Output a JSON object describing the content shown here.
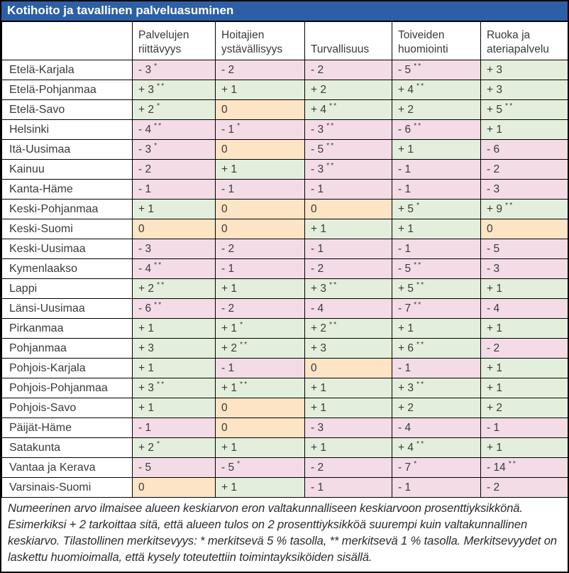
{
  "title": "Kotihoito ja tavallinen palveluasuminen",
  "columns": [
    "Palvelujen riittävyys",
    "Hoitajien ystävällisyys",
    "Turvallisuus",
    "Toiveiden huomiointi",
    "Ruoka ja ateriapalvelu"
  ],
  "colors": {
    "title_bg": "#2d5fa6",
    "title_text": "#ffffff",
    "pos": "#e3efdc",
    "neg": "#f3dce6",
    "zero": "#fce4c5",
    "border": "#000000"
  },
  "rows": [
    {
      "region": "Etelä-Karjala",
      "cells": [
        {
          "value": "- 3",
          "stars": "*",
          "tone": "neg"
        },
        {
          "value": "- 2",
          "stars": "",
          "tone": "neg"
        },
        {
          "value": "- 2",
          "stars": "",
          "tone": "neg"
        },
        {
          "value": "- 5",
          "stars": "**",
          "tone": "neg"
        },
        {
          "value": "+ 3",
          "stars": "",
          "tone": "pos"
        }
      ]
    },
    {
      "region": "Etelä-Pohjanmaa",
      "cells": [
        {
          "value": "+ 3",
          "stars": "**",
          "tone": "pos"
        },
        {
          "value": "+ 1",
          "stars": "",
          "tone": "pos"
        },
        {
          "value": "+ 2",
          "stars": "",
          "tone": "pos"
        },
        {
          "value": "+ 4",
          "stars": "**",
          "tone": "pos"
        },
        {
          "value": "+ 3",
          "stars": "",
          "tone": "pos"
        }
      ]
    },
    {
      "region": "Etelä-Savo",
      "cells": [
        {
          "value": "+ 2",
          "stars": "*",
          "tone": "pos"
        },
        {
          "value": "0",
          "stars": "",
          "tone": "zero"
        },
        {
          "value": "+ 4",
          "stars": "**",
          "tone": "pos"
        },
        {
          "value": "+ 2",
          "stars": "",
          "tone": "pos"
        },
        {
          "value": "+ 5",
          "stars": "**",
          "tone": "pos"
        }
      ]
    },
    {
      "region": "Helsinki",
      "cells": [
        {
          "value": "- 4",
          "stars": "**",
          "tone": "neg"
        },
        {
          "value": "- 1",
          "stars": "*",
          "tone": "neg"
        },
        {
          "value": "- 3",
          "stars": "**",
          "tone": "neg"
        },
        {
          "value": "- 6",
          "stars": "**",
          "tone": "neg"
        },
        {
          "value": "+ 1",
          "stars": "",
          "tone": "pos"
        }
      ]
    },
    {
      "region": "Itä-Uusimaa",
      "cells": [
        {
          "value": "- 3",
          "stars": "*",
          "tone": "neg"
        },
        {
          "value": "0",
          "stars": "",
          "tone": "zero"
        },
        {
          "value": "- 5",
          "stars": "**",
          "tone": "neg"
        },
        {
          "value": "+ 1",
          "stars": "",
          "tone": "pos"
        },
        {
          "value": "- 6",
          "stars": "",
          "tone": "neg"
        }
      ]
    },
    {
      "region": "Kainuu",
      "cells": [
        {
          "value": "- 2",
          "stars": "",
          "tone": "neg"
        },
        {
          "value": "+ 1",
          "stars": "",
          "tone": "pos"
        },
        {
          "value": "- 3",
          "stars": "**",
          "tone": "neg"
        },
        {
          "value": "- 1",
          "stars": "",
          "tone": "neg"
        },
        {
          "value": "- 2",
          "stars": "",
          "tone": "neg"
        }
      ]
    },
    {
      "region": "Kanta-Häme",
      "cells": [
        {
          "value": "- 1",
          "stars": "",
          "tone": "neg"
        },
        {
          "value": "- 1",
          "stars": "",
          "tone": "neg"
        },
        {
          "value": "- 1",
          "stars": "",
          "tone": "neg"
        },
        {
          "value": "- 1",
          "stars": "",
          "tone": "neg"
        },
        {
          "value": "- 3",
          "stars": "",
          "tone": "neg"
        }
      ]
    },
    {
      "region": "Keski-Pohjanmaa",
      "cells": [
        {
          "value": "+ 1",
          "stars": "",
          "tone": "pos"
        },
        {
          "value": "0",
          "stars": "",
          "tone": "zero"
        },
        {
          "value": "0",
          "stars": "",
          "tone": "zero"
        },
        {
          "value": "+ 5",
          "stars": "*",
          "tone": "pos"
        },
        {
          "value": "+ 9",
          "stars": "**",
          "tone": "pos"
        }
      ]
    },
    {
      "region": "Keski-Suomi",
      "cells": [
        {
          "value": "0",
          "stars": "",
          "tone": "zero"
        },
        {
          "value": "0",
          "stars": "",
          "tone": "zero"
        },
        {
          "value": "+ 1",
          "stars": "",
          "tone": "pos"
        },
        {
          "value": "+ 1",
          "stars": "",
          "tone": "pos"
        },
        {
          "value": "0",
          "stars": "",
          "tone": "zero"
        }
      ]
    },
    {
      "region": "Keski-Uusimaa",
      "cells": [
        {
          "value": "- 3",
          "stars": "",
          "tone": "neg"
        },
        {
          "value": "- 2",
          "stars": "",
          "tone": "neg"
        },
        {
          "value": "- 1",
          "stars": "",
          "tone": "neg"
        },
        {
          "value": "- 1",
          "stars": "",
          "tone": "neg"
        },
        {
          "value": "- 5",
          "stars": "",
          "tone": "neg"
        }
      ]
    },
    {
      "region": "Kymenlaakso",
      "cells": [
        {
          "value": "- 4",
          "stars": "**",
          "tone": "neg"
        },
        {
          "value": "- 1",
          "stars": "",
          "tone": "neg"
        },
        {
          "value": "- 2",
          "stars": "",
          "tone": "neg"
        },
        {
          "value": "- 5",
          "stars": "**",
          "tone": "neg"
        },
        {
          "value": "- 3",
          "stars": "",
          "tone": "neg"
        }
      ]
    },
    {
      "region": "Lappi",
      "cells": [
        {
          "value": "+ 2",
          "stars": "**",
          "tone": "pos"
        },
        {
          "value": "+ 1",
          "stars": "",
          "tone": "pos"
        },
        {
          "value": "+ 3",
          "stars": "**",
          "tone": "pos"
        },
        {
          "value": "+ 5",
          "stars": "**",
          "tone": "pos"
        },
        {
          "value": "+ 1",
          "stars": "",
          "tone": "pos"
        }
      ]
    },
    {
      "region": "Länsi-Uusimaa",
      "cells": [
        {
          "value": "- 6",
          "stars": "**",
          "tone": "neg"
        },
        {
          "value": "- 2",
          "stars": "",
          "tone": "neg"
        },
        {
          "value": "- 4",
          "stars": "",
          "tone": "neg"
        },
        {
          "value": "- 7",
          "stars": "**",
          "tone": "neg"
        },
        {
          "value": "- 4",
          "stars": "",
          "tone": "neg"
        }
      ]
    },
    {
      "region": "Pirkanmaa",
      "cells": [
        {
          "value": "+ 1",
          "stars": "",
          "tone": "pos"
        },
        {
          "value": "+ 1",
          "stars": "*",
          "tone": "pos"
        },
        {
          "value": "+ 2",
          "stars": "**",
          "tone": "pos"
        },
        {
          "value": "+ 1",
          "stars": "",
          "tone": "pos"
        },
        {
          "value": "+ 1",
          "stars": "",
          "tone": "pos"
        }
      ]
    },
    {
      "region": "Pohjanmaa",
      "cells": [
        {
          "value": "+ 3",
          "stars": "",
          "tone": "pos"
        },
        {
          "value": "+ 2",
          "stars": "**",
          "tone": "pos"
        },
        {
          "value": "+ 3",
          "stars": "",
          "tone": "pos"
        },
        {
          "value": "+ 6",
          "stars": "**",
          "tone": "pos"
        },
        {
          "value": "- 2",
          "stars": "",
          "tone": "neg"
        }
      ]
    },
    {
      "region": "Pohjois-Karjala",
      "cells": [
        {
          "value": "+ 1",
          "stars": "",
          "tone": "pos"
        },
        {
          "value": "- 1",
          "stars": "",
          "tone": "neg"
        },
        {
          "value": "0",
          "stars": "",
          "tone": "zero"
        },
        {
          "value": "- 1",
          "stars": "",
          "tone": "neg"
        },
        {
          "value": "+ 1",
          "stars": "",
          "tone": "pos"
        }
      ]
    },
    {
      "region": "Pohjois-Pohjanmaa",
      "cells": [
        {
          "value": "+ 3",
          "stars": "**",
          "tone": "pos"
        },
        {
          "value": "+ 1",
          "stars": "**",
          "tone": "pos"
        },
        {
          "value": "+ 1",
          "stars": "",
          "tone": "pos"
        },
        {
          "value": "+ 3",
          "stars": "**",
          "tone": "pos"
        },
        {
          "value": "+ 1",
          "stars": "",
          "tone": "pos"
        }
      ]
    },
    {
      "region": "Pohjois-Savo",
      "cells": [
        {
          "value": "+ 1",
          "stars": "",
          "tone": "pos"
        },
        {
          "value": "0",
          "stars": "",
          "tone": "zero"
        },
        {
          "value": "+ 1",
          "stars": "",
          "tone": "pos"
        },
        {
          "value": "+ 2",
          "stars": "",
          "tone": "pos"
        },
        {
          "value": "+ 2",
          "stars": "",
          "tone": "pos"
        }
      ]
    },
    {
      "region": "Päijät-Häme",
      "cells": [
        {
          "value": "- 1",
          "stars": "",
          "tone": "neg"
        },
        {
          "value": "0",
          "stars": "",
          "tone": "zero"
        },
        {
          "value": "- 3",
          "stars": "",
          "tone": "neg"
        },
        {
          "value": "- 4",
          "stars": "",
          "tone": "neg"
        },
        {
          "value": "- 1",
          "stars": "",
          "tone": "neg"
        }
      ]
    },
    {
      "region": "Satakunta",
      "cells": [
        {
          "value": "+ 2",
          "stars": "*",
          "tone": "pos"
        },
        {
          "value": "+ 1",
          "stars": "",
          "tone": "pos"
        },
        {
          "value": "+ 1",
          "stars": "",
          "tone": "pos"
        },
        {
          "value": "+ 4",
          "stars": "**",
          "tone": "pos"
        },
        {
          "value": "+ 1",
          "stars": "",
          "tone": "pos"
        }
      ]
    },
    {
      "region": "Vantaa ja Kerava",
      "cells": [
        {
          "value": "- 5",
          "stars": "",
          "tone": "neg"
        },
        {
          "value": "- 5",
          "stars": "*",
          "tone": "neg"
        },
        {
          "value": "- 2",
          "stars": "",
          "tone": "neg"
        },
        {
          "value": "- 7",
          "stars": "*",
          "tone": "neg"
        },
        {
          "value": "- 14",
          "stars": "**",
          "tone": "neg"
        }
      ]
    },
    {
      "region": "Varsinais-Suomi",
      "cells": [
        {
          "value": "0",
          "stars": "",
          "tone": "zero"
        },
        {
          "value": "+ 1",
          "stars": "",
          "tone": "pos"
        },
        {
          "value": "- 1",
          "stars": "",
          "tone": "neg"
        },
        {
          "value": "- 1",
          "stars": "",
          "tone": "neg"
        },
        {
          "value": "- 2",
          "stars": "",
          "tone": "neg"
        }
      ]
    }
  ],
  "footnote": "Numeerinen arvo ilmaisee alueen keskiarvon eron valtakunnalliseen keskiarvoon prosenttiyksikkönä. Esimerkiksi + 2 tarkoittaa sitä, että alueen tulos on 2 prosenttiyksikköä suurempi kuin valtakunnallinen keskiarvo. Tilastollinen merkitsevyys: * merkitsevä 5 % tasolla, ** merkitsevä 1 % tasolla. Merkitsevyydet on laskettu huomioimalla, että kysely toteutettiin toimintayksiköiden sisällä."
}
